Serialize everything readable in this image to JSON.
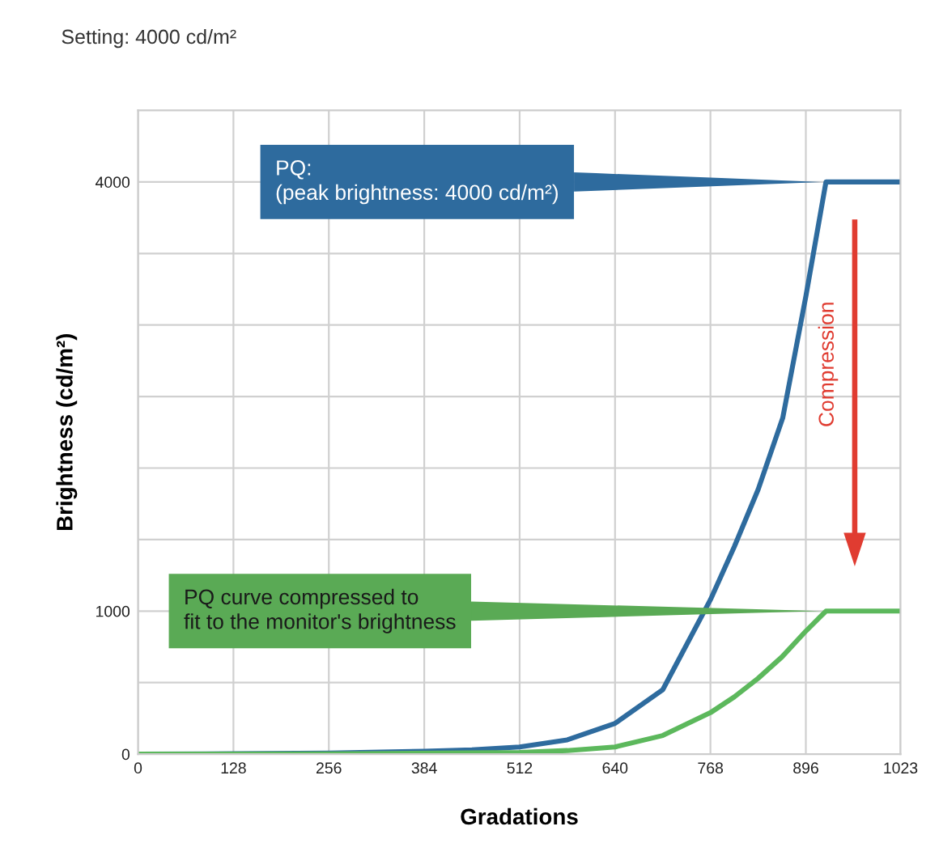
{
  "chart_data": {
    "type": "line",
    "title": "Setting: 4000 cd/m²",
    "xlabel": "Gradations",
    "ylabel": "Brightness (cd/m²)",
    "series": [
      {
        "x": [
          0,
          128,
          256,
          384,
          448,
          512,
          576,
          640,
          704,
          768,
          800,
          832,
          865,
          896,
          923,
          1023
        ],
        "values": [
          0,
          3,
          8,
          20,
          30,
          50,
          100,
          215,
          450,
          1080,
          1450,
          1850,
          2350,
          3200,
          4000,
          4000
        ],
        "color": "#2e6b9e"
      },
      {
        "x": [
          0,
          256,
          512,
          576,
          640,
          704,
          768,
          800,
          832,
          864,
          896,
          923,
          1023
        ],
        "values": [
          0,
          2,
          12,
          25,
          50,
          130,
          290,
          400,
          530,
          680,
          860,
          1000,
          1000
        ],
        "color": "#5cb85c"
      }
    ],
    "annotations": [
      {
        "text": "PQ:\n(peak brightness: 4000 cd/m²)",
        "x": 923,
        "y": 4000
      },
      {
        "text": "PQ curve compressed to\nfit to the monitor's brightness",
        "x": 923,
        "y": 1000
      },
      "Compression"
    ],
    "xlim": [
      0,
      1023
    ],
    "xticks": [
      0,
      128,
      256,
      384,
      512,
      640,
      768,
      896,
      1023
    ],
    "ylim": [
      0,
      4500
    ],
    "yticks": [
      0,
      {
        "value": 500,
        "label": null
      },
      1000,
      {
        "value": 1500,
        "label": null
      },
      {
        "value": 2000,
        "label": null
      },
      {
        "value": 2500,
        "label": null
      },
      {
        "value": 3000,
        "label": null
      },
      {
        "value": 3500,
        "label": null
      },
      4000
    ],
    "grid": true,
    "marker": "none",
    "line_style": "solid"
  }
}
